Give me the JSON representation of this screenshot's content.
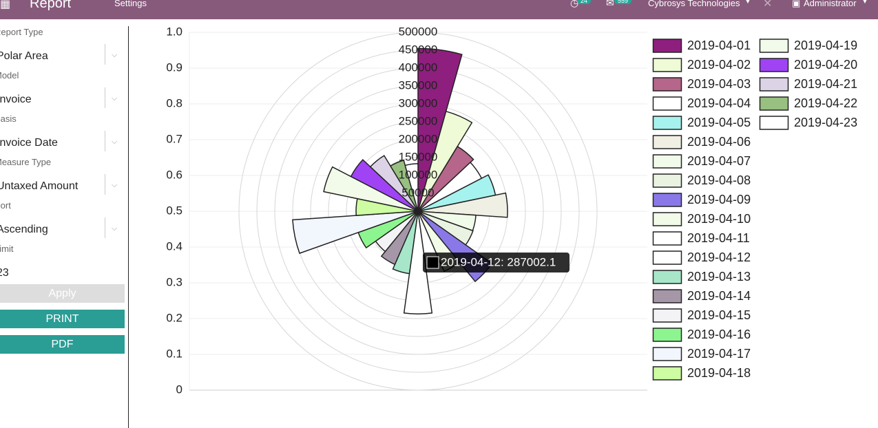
{
  "nav": {
    "app_title": "Report",
    "menu": [
      "Settings"
    ],
    "activity_count": "24",
    "message_count": "559",
    "company": "Cybrosys Technologies",
    "user": "Administrator"
  },
  "sidebar": {
    "fields": [
      {
        "label": "Report Type",
        "value": "Polar Area"
      },
      {
        "label": "Model",
        "value": "Invoice"
      },
      {
        "label": "Basis",
        "value": "Invoice Date"
      },
      {
        "label": "Measure Type",
        "value": "Untaxed Amount"
      },
      {
        "label": "Sort",
        "value": "Ascending"
      },
      {
        "label": "Limit",
        "value": "23"
      }
    ],
    "buttons": [
      "Apply",
      "PRINT",
      "PDF"
    ]
  },
  "chart_data": {
    "type": "polarArea",
    "categories": [
      "2019-04-01",
      "2019-04-02",
      "2019-04-03",
      "2019-04-04",
      "2019-04-05",
      "2019-04-06",
      "2019-04-07",
      "2019-04-08",
      "2019-04-09",
      "2019-04-10",
      "2019-04-11",
      "2019-04-12",
      "2019-04-13",
      "2019-04-14",
      "2019-04-15",
      "2019-04-16",
      "2019-04-17",
      "2019-04-18",
      "2019-04-19",
      "2019-04-20",
      "2019-04-21",
      "2019-04-22",
      "2019-04-23"
    ],
    "values": [
      455000,
      290000,
      212000,
      200000,
      221000,
      250000,
      162000,
      163000,
      253000,
      183000,
      154000,
      287002.1,
      176000,
      162000,
      145000,
      177000,
      351000,
      173000,
      269000,
      211000,
      182000,
      148000,
      133000
    ],
    "colors": [
      "#8e1f7e",
      "#eefbd6",
      "#b5668a",
      "#ffffff",
      "#a6f2ee",
      "#efefe3",
      "#f1fbe9",
      "#eaf3e1",
      "#8a78e8",
      "#f2fbe8",
      "#ffffff",
      "#ffffff",
      "#a7e6c9",
      "#a596a8",
      "#f3f2f5",
      "#8df58f",
      "#f2f6fd",
      "#cdfca2",
      "#f2fbe9",
      "#a043f4",
      "#dcd4e6",
      "#98c080",
      "#ffffff"
    ],
    "rlim": [
      0,
      500000
    ],
    "rticks": [
      50000,
      100000,
      150000,
      200000,
      250000,
      300000,
      350000,
      400000,
      450000,
      500000
    ],
    "ylim": [
      0,
      1
    ],
    "yticks": [
      0,
      0.1,
      0.2,
      0.3,
      0.4,
      0.5,
      0.6,
      0.7,
      0.8,
      0.9,
      {
        "value": 1,
        "label": "1.0"
      }
    ],
    "grid": true,
    "legend": "right",
    "tooltip": "2019-04-12: 287002.1"
  }
}
